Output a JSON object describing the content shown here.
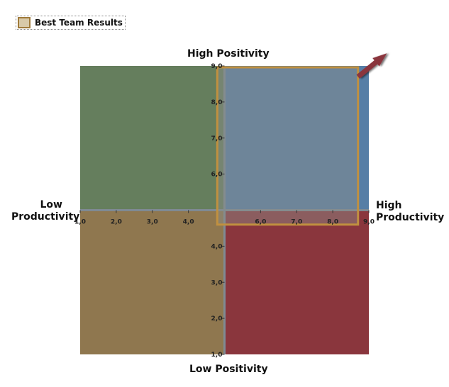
{
  "legend": {
    "label": "Best Team Results",
    "swatch_fill": "#d8c9a8",
    "swatch_border": "#a07a3a"
  },
  "axis_titles": {
    "top": "High Positivity",
    "bottom": "Low Positivity",
    "left_line1": "Low",
    "left_line2": "Productivity",
    "right_line1": "High",
    "right_line2": "Productivity"
  },
  "chart_data": {
    "type": "quadrant",
    "xlim": [
      1.0,
      9.0
    ],
    "ylim": [
      1.0,
      9.0
    ],
    "center": {
      "x": 5.0,
      "y": 5.0
    },
    "x_ticks": [
      "1,0",
      "2,0",
      "3,0",
      "4,0",
      "6,0",
      "7,0",
      "8,0",
      "9,0"
    ],
    "x_tick_values": [
      1,
      2,
      3,
      4,
      6,
      7,
      8,
      9
    ],
    "y_ticks": [
      "1,0",
      "2,0",
      "3,0",
      "4,0",
      "6,0",
      "7,0",
      "8,0",
      "9,0"
    ],
    "y_tick_values": [
      1,
      2,
      3,
      4,
      6,
      7,
      8,
      9
    ],
    "quadrants": [
      {
        "name": "high-positivity-low-productivity",
        "x": [
          1,
          5
        ],
        "y": [
          5,
          9
        ],
        "color": "#657e5d"
      },
      {
        "name": "high-positivity-high-productivity",
        "x": [
          5,
          9
        ],
        "y": [
          5,
          9
        ],
        "color": "#567ea6"
      },
      {
        "name": "low-positivity-low-productivity",
        "x": [
          1,
          5
        ],
        "y": [
          1,
          5
        ],
        "color": "#8f774f"
      },
      {
        "name": "low-positivity-high-productivity",
        "x": [
          5,
          9
        ],
        "y": [
          1,
          5
        ],
        "color": "#8a363d"
      }
    ],
    "highlight": {
      "series": "Best Team Results",
      "x": [
        4.8,
        8.7
      ],
      "y": [
        4.6,
        9.0
      ],
      "fill": "#8c8f8a",
      "border": "#c09040"
    },
    "arrow": {
      "from": {
        "x": 8.7,
        "y": 8.7
      },
      "to": {
        "x": 9.5,
        "y": 9.35
      },
      "color": "#8a363d"
    }
  }
}
